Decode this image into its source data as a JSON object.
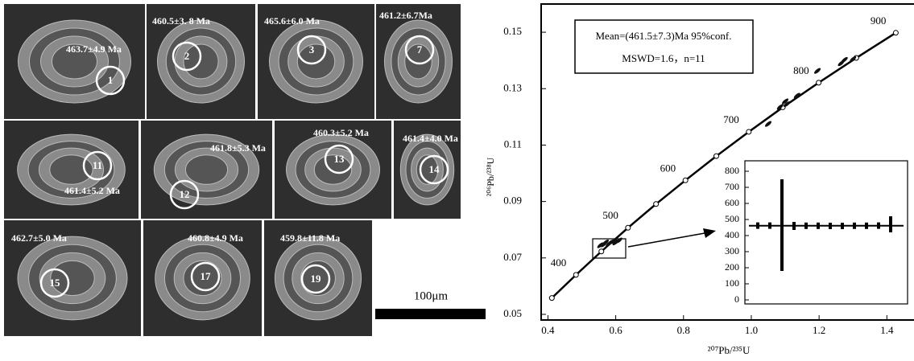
{
  "grains": [
    {
      "number": "1",
      "age": "463.7±4.9 Ma"
    },
    {
      "number": "2",
      "age": "460.5±3. 8 Ma"
    },
    {
      "number": "3",
      "age": "465.6±6.0 Ma"
    },
    {
      "number": "7",
      "age": "461.2±6.7Ma"
    },
    {
      "number": "11",
      "age": "461.4±5.2 Ma"
    },
    {
      "number": "12",
      "age": "461.8±5.3 Ma"
    },
    {
      "number": "13",
      "age": "460.3±5.2 Ma"
    },
    {
      "number": "14",
      "age": "461.4±4.0 Ma"
    },
    {
      "number": "15",
      "age": "462.7±5.0 Ma"
    },
    {
      "number": "17",
      "age": "460.8±4.9 Ma"
    },
    {
      "number": "19",
      "age": "459.8±11.8 Ma"
    }
  ],
  "scale_bar": "100μm",
  "chart_data": {
    "type": "line",
    "x_label": "²⁰⁷Pb/²³⁵U",
    "y_label": "²⁰⁶Pb/²³⁸U",
    "annotation": [
      "Mean=(461.5±7.3)Ma   95%conf.",
      "MSWD=1.6，n=11"
    ],
    "xlim": [
      0.38,
      1.48
    ],
    "ylim": [
      0.048,
      0.16
    ],
    "xticks": [
      0.4,
      0.6,
      0.8,
      {
        "value": 1,
        "label": "1.0"
      },
      1.2,
      1.4
    ],
    "yticks": [
      0.05,
      0.07,
      0.09,
      0.11,
      0.13,
      0.15
    ],
    "concordia": {
      "color": "#000000",
      "labels": [
        null,
        400,
        null,
        500,
        null,
        600,
        null,
        700,
        null,
        800,
        null,
        900
      ],
      "x": [
        0.4116,
        0.4828,
        0.5576,
        0.6362,
        0.7189,
        0.8056,
        0.8968,
        0.9925,
        1.093,
        1.1987,
        1.3097,
        1.4263
      ],
      "y": [
        0.0558,
        0.064,
        0.0723,
        0.0807,
        0.0891,
        0.0975,
        0.1061,
        0.1147,
        0.1234,
        0.1321,
        0.1409,
        0.1498
      ]
    },
    "analyses": {
      "color": "#111111",
      "x": [
        0.555,
        0.565,
        0.57,
        0.58,
        0.585,
        0.595,
        0.6,
        0.61,
        1.05,
        1.085,
        1.1,
        1.105,
        1.135,
        1.195,
        1.265,
        1.275,
        1.3
      ],
      "y": [
        0.0745,
        0.0748,
        0.0755,
        0.075,
        0.0755,
        0.076,
        0.0755,
        0.0762,
        0.1175,
        0.1235,
        0.1255,
        0.1245,
        0.1275,
        0.1363,
        0.139,
        0.1402,
        0.1405
      ]
    },
    "inset": {
      "ylim": [
        -25,
        865
      ],
      "yticks": [
        0,
        100,
        200,
        300,
        400,
        500,
        600,
        700,
        800
      ],
      "mean": 461.5,
      "values": [
        462,
        462,
        465,
        460,
        461,
        461,
        460,
        460,
        461,
        461,
        462,
        470
      ],
      "errors": [
        20,
        20,
        285,
        25,
        20,
        20,
        20,
        20,
        20,
        20,
        20,
        50
      ]
    }
  }
}
